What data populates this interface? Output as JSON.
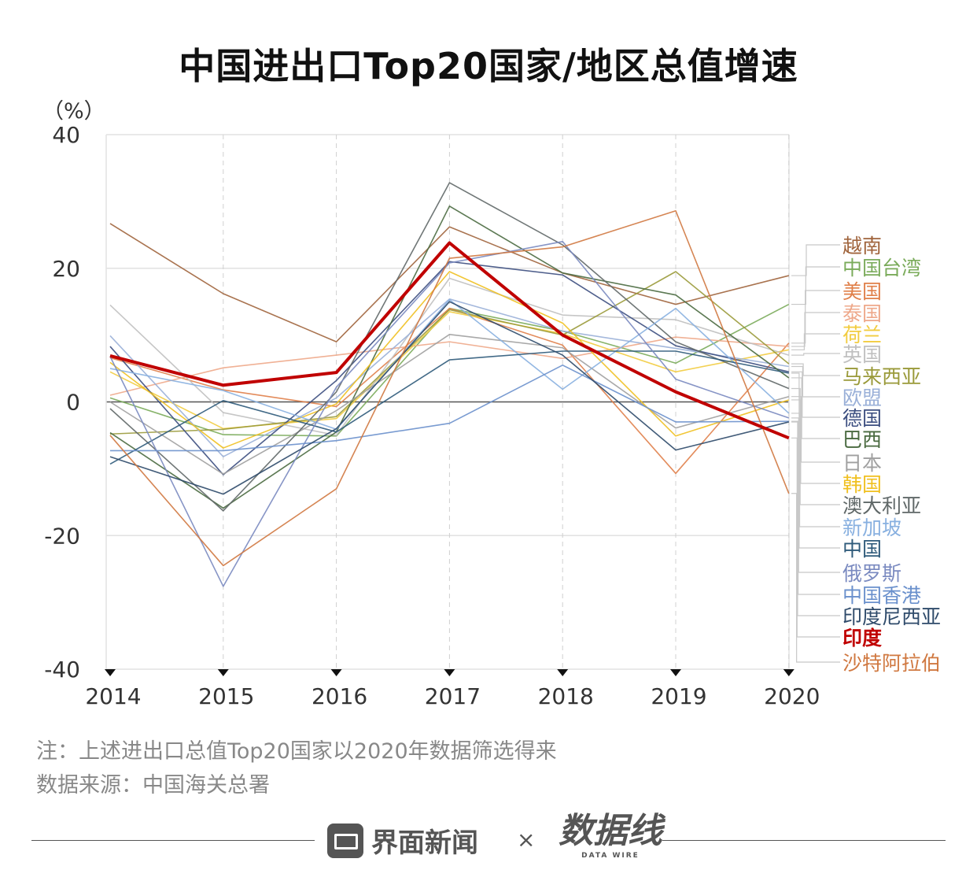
{
  "title": "中国进出口Top20国家/地区总值增速",
  "chart_data": {
    "type": "line",
    "title": "中国进出口Top20国家/地区总值增速",
    "ylabel": "（%）",
    "xlabel": "",
    "x": [
      "2014",
      "2015",
      "2016",
      "2017",
      "2018",
      "2019",
      "2020"
    ],
    "ylim": [
      -40,
      40
    ],
    "yticks": [
      40,
      20,
      0,
      -20,
      -40
    ],
    "ytick_labels": [
      "40",
      "20",
      "0",
      "-20",
      "-40"
    ],
    "grid": true,
    "legend_placement": "right, labels at line ends",
    "series": [
      {
        "name": "越南",
        "color": "#a0643c",
        "values": [
          26.7,
          16.2,
          9.0,
          26.2,
          19.3,
          14.6,
          18.9
        ]
      },
      {
        "name": "中国台湾",
        "color": "#7aab5a",
        "values": [
          0.6,
          -4.9,
          -5.1,
          14.0,
          10.6,
          5.8,
          14.6
        ]
      },
      {
        "name": "美国",
        "color": "#e0804a",
        "values": [
          6.6,
          1.8,
          -0.7,
          14.0,
          8.5,
          -10.7,
          8.8
        ]
      },
      {
        "name": "泰国",
        "color": "#eea88a",
        "values": [
          1.0,
          5.1,
          7.0,
          9.0,
          6.5,
          9.7,
          8.3
        ]
      },
      {
        "name": "荷兰",
        "color": "#f2cc40",
        "values": [
          4.5,
          -4.0,
          -2.5,
          13.5,
          10.2,
          4.5,
          7.8
        ]
      },
      {
        "name": "英国",
        "color": "#c0c0c0",
        "values": [
          14.5,
          -1.6,
          -5.0,
          18.5,
          13.0,
          12.3,
          7.0
        ]
      },
      {
        "name": "马来西亚",
        "color": "#9a9a3a",
        "values": [
          -4.8,
          -4.1,
          -2.2,
          13.8,
          10.0,
          19.5,
          5.7
        ]
      },
      {
        "name": "欧盟",
        "color": "#9ab0d8",
        "values": [
          9.9,
          -8.2,
          0.6,
          15.4,
          10.6,
          8.0,
          5.3
        ]
      },
      {
        "name": "德国",
        "color": "#3c4e80",
        "values": [
          8.3,
          -10.9,
          3.2,
          21.0,
          19.0,
          8.4,
          4.5
        ]
      },
      {
        "name": "巴西",
        "color": "#4a6a40",
        "values": [
          -4.6,
          -15.9,
          -4.5,
          29.3,
          19.3,
          16.0,
          3.6
        ]
      },
      {
        "name": "日本",
        "color": "#a0a0a0",
        "values": [
          0.0,
          -10.8,
          -1.3,
          10.1,
          8.1,
          -3.9,
          0.8
        ]
      },
      {
        "name": "韩国",
        "color": "#f0c020",
        "values": [
          5.9,
          -6.9,
          -0.3,
          19.5,
          11.8,
          -5.1,
          0.3
        ]
      },
      {
        "name": "澳大利亚",
        "color": "#606868",
        "values": [
          -1.0,
          -16.3,
          1.5,
          32.8,
          23.5,
          9.0,
          2.0
        ]
      },
      {
        "name": "新加坡",
        "color": "#88b0e0",
        "values": [
          5.0,
          1.7,
          -4.1,
          15.3,
          1.9,
          14.0,
          -1.7
        ]
      },
      {
        "name": "中国",
        "color": "#2e5a7a",
        "values": [
          -9.3,
          0.2,
          -4.5,
          6.3,
          7.6,
          7.6,
          4.3
        ]
      },
      {
        "name": "俄罗斯",
        "color": "#7a8ac0",
        "values": [
          6.8,
          -27.6,
          2.2,
          20.8,
          24.0,
          3.4,
          -2.4
        ]
      },
      {
        "name": "中国香港",
        "color": "#6a90cc",
        "values": [
          -7.3,
          -7.3,
          -5.8,
          -3.2,
          5.5,
          -3.0,
          -2.9
        ]
      },
      {
        "name": "印度尼西亚",
        "color": "#2e4a6a",
        "values": [
          -8.2,
          -13.8,
          -4.0,
          15.0,
          7.0,
          -7.2,
          -3.0
        ]
      },
      {
        "name": "印度",
        "color": "#c00000",
        "values": [
          6.9,
          2.5,
          4.4,
          23.8,
          10.0,
          1.5,
          -5.4
        ]
      },
      {
        "name": "沙特阿拉伯",
        "color": "#d07840",
        "values": [
          -5.0,
          -24.5,
          -13.0,
          21.5,
          23.2,
          28.6,
          -13.7
        ]
      }
    ],
    "highlight_series": "印度"
  },
  "notes": {
    "note": "注：上述进出口总值Top20国家以2020年数据筛选得来",
    "source": "数据来源：中国海关总署"
  },
  "footer": {
    "brand1": "界面新闻",
    "times": "×",
    "brand2": "数据线",
    "brand2_sub": "DATA WIRE"
  },
  "watermark": "数据线"
}
